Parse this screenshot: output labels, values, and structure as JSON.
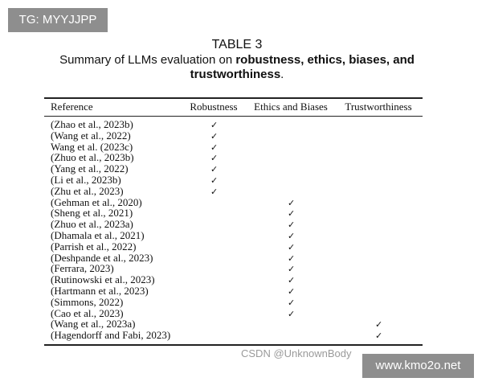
{
  "watermark_top": "TG: MYYJJPP",
  "watermark_bottom": "www.kmo2o.net",
  "watermark_csdn": "CSDN @UnknownBody",
  "table": {
    "number": "TABLE 3",
    "caption_prefix": "Summary of LLMs evaluation on ",
    "caption_bold": "robustness, ethics, biases, and trustworthiness",
    "caption_suffix": ".",
    "headers": [
      "Reference",
      "Robustness",
      "Ethics and Biases",
      "Trustworthiness"
    ],
    "check_glyph": "✓",
    "rows": [
      {
        "ref": "(Zhao et al., 2023b)",
        "col": 1
      },
      {
        "ref": "(Wang et al., 2022)",
        "col": 1
      },
      {
        "ref": "Wang et al. (2023c)",
        "col": 1
      },
      {
        "ref": "(Zhuo et al., 2023b)",
        "col": 1
      },
      {
        "ref": "(Yang et al., 2022)",
        "col": 1
      },
      {
        "ref": "(Li et al., 2023b)",
        "col": 1
      },
      {
        "ref": "(Zhu et al., 2023)",
        "col": 1
      },
      {
        "ref": "(Gehman et al., 2020)",
        "col": 2
      },
      {
        "ref": "(Sheng et al., 2021)",
        "col": 2
      },
      {
        "ref": "(Zhuo et al., 2023a)",
        "col": 2
      },
      {
        "ref": "(Dhamala et al., 2021)",
        "col": 2
      },
      {
        "ref": "(Parrish et al., 2022)",
        "col": 2
      },
      {
        "ref": "(Deshpande et al., 2023)",
        "col": 2
      },
      {
        "ref": "(Ferrara, 2023)",
        "col": 2
      },
      {
        "ref": "(Rutinowski et al., 2023)",
        "col": 2
      },
      {
        "ref": "(Hartmann et al., 2023)",
        "col": 2
      },
      {
        "ref": "(Simmons, 2022)",
        "col": 2
      },
      {
        "ref": "(Cao et al., 2023)",
        "col": 2
      },
      {
        "ref": "(Wang et al., 2023a)",
        "col": 3
      },
      {
        "ref": "(Hagendorff and Fabi, 2023)",
        "col": 3
      }
    ]
  }
}
